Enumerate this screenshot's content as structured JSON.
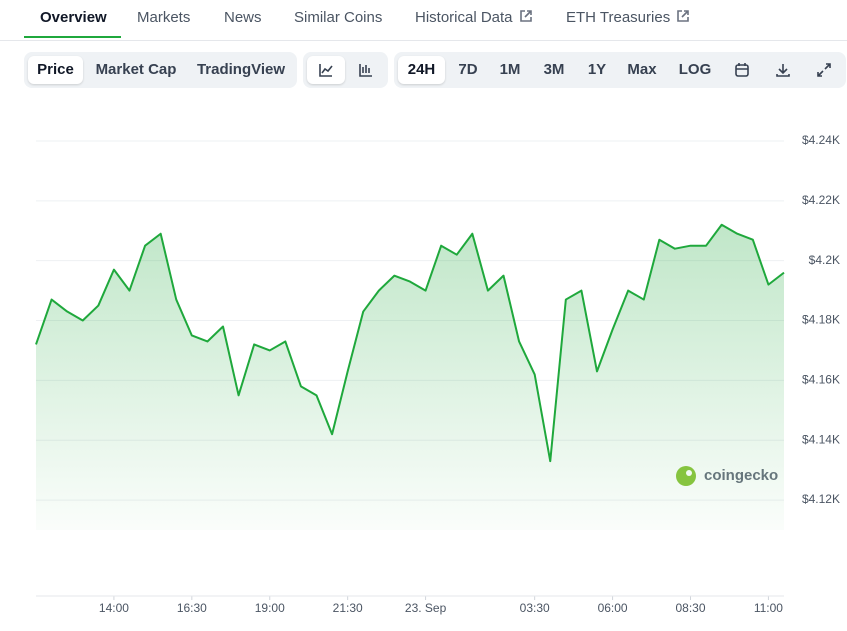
{
  "tabs": [
    "Overview",
    "Markets",
    "News",
    "Similar Coins",
    "Historical Data",
    "ETH Treasuries"
  ],
  "view_toggle": [
    "Price",
    "Market Cap",
    "TradingView"
  ],
  "ranges": [
    "24H",
    "7D",
    "1M",
    "3M",
    "1Y",
    "Max",
    "LOG"
  ],
  "watermark": "coingecko",
  "chart_data": {
    "type": "line",
    "color": "#1fa83c",
    "area": true,
    "grid": true,
    "values": [
      4172,
      4187,
      4183,
      4180,
      4185,
      4197,
      4190,
      4205,
      4209,
      4187,
      4175,
      4173,
      4178,
      4155,
      4172,
      4170,
      4173,
      4158,
      4155,
      4142,
      4163,
      4183,
      4190,
      4195,
      4193,
      4190,
      4205,
      4202,
      4209,
      4190,
      4195,
      4173,
      4162,
      4133,
      4187,
      4190,
      4163,
      4177,
      4190,
      4187,
      4207,
      4204,
      4205,
      4205,
      4212,
      4209,
      4207,
      4192,
      4196
    ],
    "ylim": [
      4110,
      4245
    ],
    "yticks": [
      {
        "value": 4120,
        "label": "$4.12K"
      },
      {
        "value": 4140,
        "label": "$4.14K"
      },
      {
        "value": 4160,
        "label": "$4.16K"
      },
      {
        "value": 4180,
        "label": "$4.18K"
      },
      {
        "value": 4200,
        "label": "$4.2K"
      },
      {
        "value": 4220,
        "label": "$4.22K"
      },
      {
        "value": 4240,
        "label": "$4.24K"
      }
    ],
    "xticks": [
      {
        "value": 5,
        "label": "14:00"
      },
      {
        "value": 10,
        "label": "16:30"
      },
      {
        "value": 15,
        "label": "19:00"
      },
      {
        "value": 20,
        "label": "21:30"
      },
      {
        "value": 25,
        "label": "23. Sep"
      },
      {
        "value": 32,
        "label": "03:30"
      },
      {
        "value": 37,
        "label": "06:00"
      },
      {
        "value": 42,
        "label": "08:30"
      },
      {
        "value": 47,
        "label": "11:00"
      }
    ]
  }
}
